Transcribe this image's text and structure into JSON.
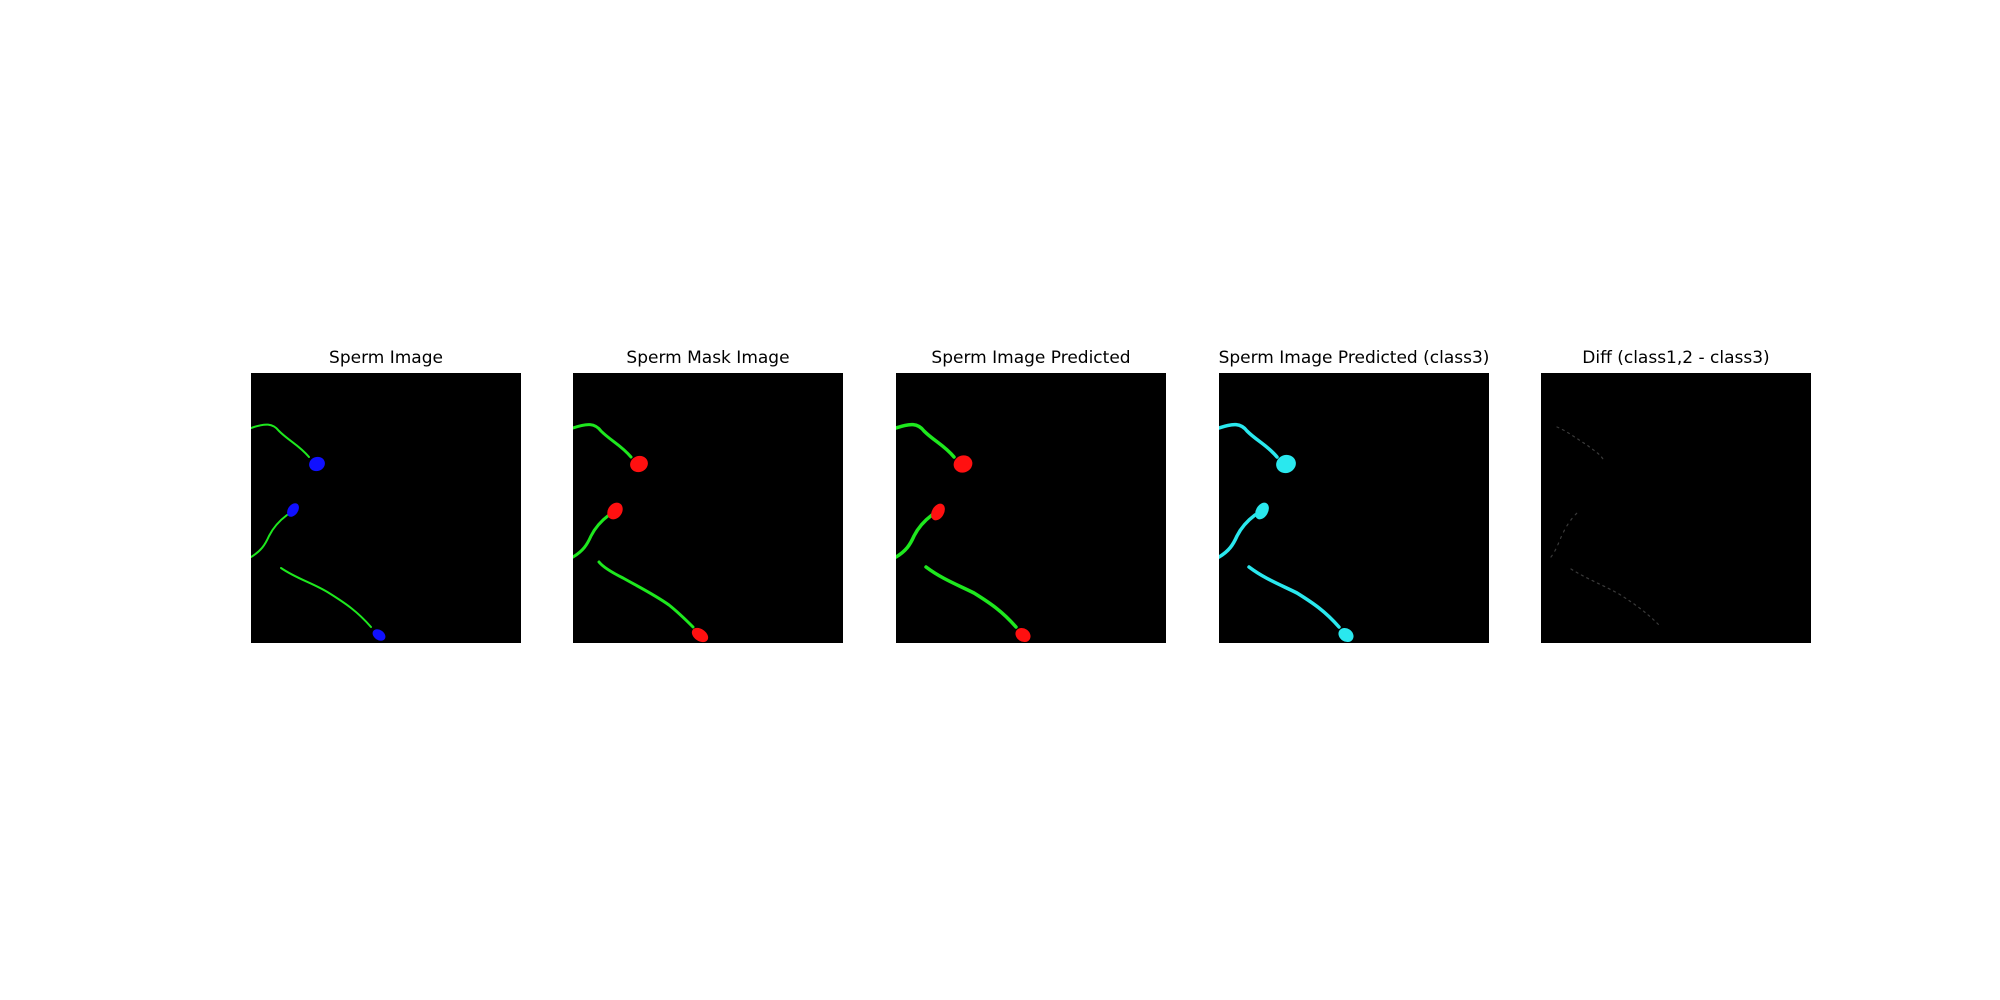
{
  "panels": [
    {
      "title": "Sperm Image",
      "tail_color": "#1ee81e",
      "head_color": "#1010ff"
    },
    {
      "title": "Sperm Mask Image",
      "tail_color": "#1ee81e",
      "head_color": "#ff1010"
    },
    {
      "title": "Sperm Image Predicted",
      "tail_color": "#1ee81e",
      "head_color": "#ff1010"
    },
    {
      "title": "Sperm Image Predicted (class3)",
      "tail_color": "#2ae8ee",
      "head_color": "#2ae8ee"
    },
    {
      "title": "Diff (class1,2 - class3)",
      "tail_color": "#3a3a3a",
      "head_color": "#000000"
    }
  ]
}
